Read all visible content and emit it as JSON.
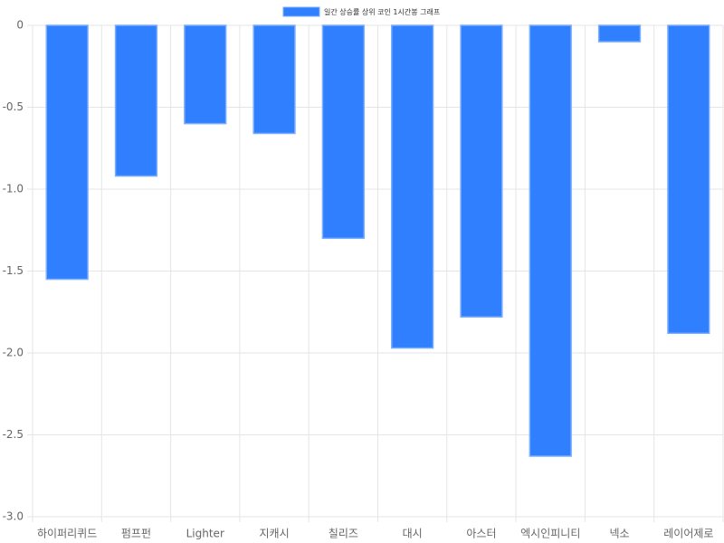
{
  "chart_data": {
    "type": "bar",
    "legend_label": "일간 상승률 상위 코인 1시간봉 그래프",
    "categories": [
      "하이퍼리퀴드",
      "펌프펀",
      "Lighter",
      "지캐시",
      "칠리즈",
      "대시",
      "아스터",
      "엑시인피니티",
      "넥소",
      "레이어제로"
    ],
    "values": [
      -1.55,
      -0.92,
      -0.6,
      -0.66,
      -1.3,
      -1.97,
      -1.78,
      -2.63,
      -0.1,
      -1.88
    ],
    "color": "#2f7fff",
    "border_color": "#7aaeff",
    "ylim": [
      -3,
      0
    ],
    "yticks": [
      0,
      -0.5,
      {
        "value": -1,
        "label": "-1.0"
      },
      -1.5,
      {
        "value": -2,
        "label": "-2.0"
      },
      -2.5,
      {
        "value": -3,
        "label": "-3.0"
      }
    ],
    "grid": true,
    "legend_position": "top"
  }
}
